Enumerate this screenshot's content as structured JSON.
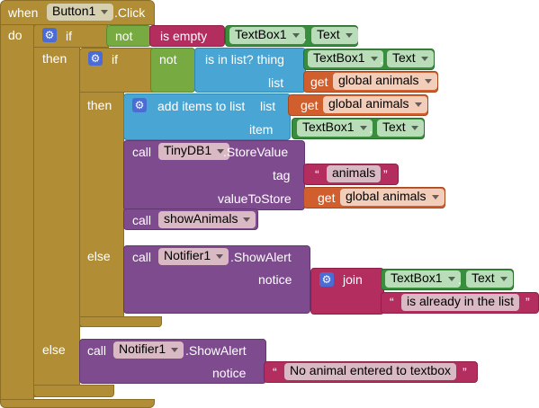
{
  "event": {
    "when": "when",
    "component": "Button1",
    "event_name": ".Click",
    "do": "do"
  },
  "if1": {
    "if": "if",
    "then": "then",
    "else": "else",
    "not": "not",
    "is_empty": "is empty",
    "textbox": "TextBox1",
    "dot": ".",
    "prop": "Text"
  },
  "if2": {
    "if": "if",
    "then": "then",
    "else": "else",
    "not": "not",
    "is_in_list": "is in list?  thing",
    "list": "list",
    "textbox": "TextBox1",
    "dot": ".",
    "prop": "Text",
    "get": "get",
    "var": "global animals"
  },
  "add_items": {
    "label": "add items to list",
    "list": "list",
    "item": "item",
    "get": "get",
    "var": "global animals",
    "textbox": "TextBox1",
    "dot": ".",
    "prop": "Text"
  },
  "store": {
    "call": "call",
    "component": "TinyDB1",
    "method": ".StoreValue",
    "tag": "tag",
    "tag_value": "animals",
    "value_to_store": "valueToStore",
    "get": "get",
    "var": "global animals"
  },
  "show": {
    "call": "call",
    "procedure": "showAnimals"
  },
  "alert1": {
    "call": "call",
    "component": "Notifier1",
    "method": ".ShowAlert",
    "notice": "notice",
    "join": "join",
    "textbox": "TextBox1",
    "dot": ".",
    "prop": "Text",
    "text": "is already in the list"
  },
  "alert2": {
    "call": "call",
    "component": "Notifier1",
    "method": ".ShowAlert",
    "notice": "notice",
    "text": "No animal entered to textbox"
  },
  "quote_open": "“",
  "quote_close": "”"
}
